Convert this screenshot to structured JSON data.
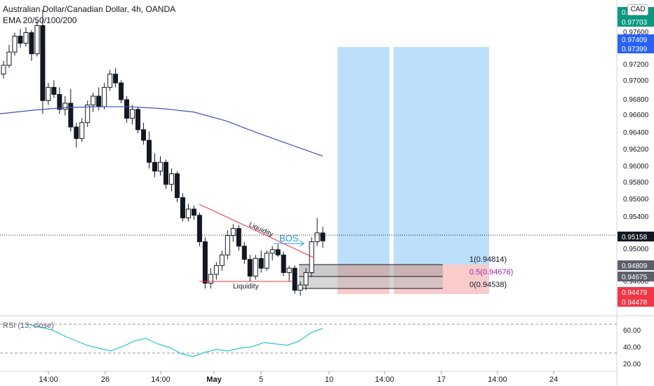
{
  "header": {
    "title": "Australian Dollar/Canadian Dollar, 4h, OANDA",
    "indicator": "EMA 20/50/100/200",
    "currency": "CAD"
  },
  "rsi": {
    "title": "RSI (13, close)",
    "ticks": [
      "60.00",
      "40.00",
      "20.00"
    ]
  },
  "annotations": {
    "bos": "BOS",
    "liquidity_upper": "Liquidity",
    "liquidity_lower": "Liquidity",
    "fib_1": "1(0.94814)",
    "fib_05": "0.5(0.94676)",
    "fib_0": "0(0.94538)"
  },
  "price_axis": {
    "ticks": [
      "0.97600",
      "0.97200",
      "0.97000",
      "0.96800",
      "0.96600",
      "0.96400",
      "0.96200",
      "0.96000",
      "0.95800",
      "0.95600",
      "0.95400",
      "0.95000",
      "0.94600"
    ],
    "badges": [
      {
        "text": "0.97727",
        "color": "#089981"
      },
      {
        "text": "0.97703",
        "color": "#089981"
      },
      {
        "text": "0.97409",
        "color": "#2962ff"
      },
      {
        "text": "0.97399",
        "color": "#2962ff"
      },
      {
        "text": "0.95158",
        "color": "#131722"
      },
      {
        "text": "0.94809",
        "color": "#5d606b"
      },
      {
        "text": "0.94675",
        "color": "#5d606b"
      },
      {
        "text": "0.94479",
        "color": "#f23645"
      },
      {
        "text": "0.94478",
        "color": "#f23645"
      }
    ]
  },
  "time_axis": {
    "labels": [
      "14:00",
      "26",
      "14:00",
      "May",
      "5",
      "10",
      "14:00",
      "17",
      "14:00",
      "24"
    ]
  },
  "chart_data": {
    "type": "candlestick",
    "title": "Australian Dollar/Canadian Dollar, 4h, OANDA",
    "ylim": [
      0.9435,
      0.9785
    ],
    "last_price": 0.95158,
    "ohlc": [
      [
        0.9705,
        0.972,
        0.97,
        0.9715
      ],
      [
        0.9715,
        0.9738,
        0.9712,
        0.973
      ],
      [
        0.973,
        0.9752,
        0.9726,
        0.9748
      ],
      [
        0.9748,
        0.9756,
        0.9735,
        0.974
      ],
      [
        0.974,
        0.9758,
        0.9736,
        0.9752
      ],
      [
        0.9752,
        0.9755,
        0.972,
        0.9728
      ],
      [
        0.9728,
        0.9765,
        0.9725,
        0.976
      ],
      [
        0.976,
        0.9778,
        0.966,
        0.9675
      ],
      [
        0.9675,
        0.9695,
        0.967,
        0.969
      ],
      [
        0.969,
        0.9698,
        0.9678,
        0.9682
      ],
      [
        0.9682,
        0.969,
        0.966,
        0.9665
      ],
      [
        0.9665,
        0.968,
        0.9658,
        0.9672
      ],
      [
        0.9672,
        0.9688,
        0.964,
        0.9645
      ],
      [
        0.9645,
        0.965,
        0.9622,
        0.9632
      ],
      [
        0.9632,
        0.9655,
        0.9628,
        0.965
      ],
      [
        0.965,
        0.9675,
        0.9645,
        0.967
      ],
      [
        0.967,
        0.9684,
        0.9662,
        0.968
      ],
      [
        0.968,
        0.969,
        0.9664,
        0.9668
      ],
      [
        0.9668,
        0.9695,
        0.9665,
        0.969
      ],
      [
        0.969,
        0.971,
        0.9686,
        0.9705
      ],
      [
        0.9705,
        0.9712,
        0.969,
        0.9695
      ],
      [
        0.9695,
        0.9698,
        0.9672,
        0.9676
      ],
      [
        0.9676,
        0.968,
        0.965,
        0.9655
      ],
      [
        0.9655,
        0.967,
        0.9648,
        0.9665
      ],
      [
        0.9665,
        0.9668,
        0.9638,
        0.9642
      ],
      [
        0.9642,
        0.965,
        0.9625,
        0.963
      ],
      [
        0.963,
        0.964,
        0.9598,
        0.9605
      ],
      [
        0.9605,
        0.9615,
        0.9588,
        0.9595
      ],
      [
        0.9595,
        0.9612,
        0.959,
        0.9605
      ],
      [
        0.9605,
        0.9608,
        0.9575,
        0.958
      ],
      [
        0.958,
        0.9598,
        0.9572,
        0.9592
      ],
      [
        0.9592,
        0.9595,
        0.956,
        0.9565
      ],
      [
        0.9565,
        0.957,
        0.9538,
        0.9542
      ],
      [
        0.9542,
        0.9558,
        0.9538,
        0.9552
      ],
      [
        0.9552,
        0.9556,
        0.954,
        0.9545
      ],
      [
        0.9545,
        0.9548,
        0.951,
        0.9515
      ],
      [
        0.9515,
        0.952,
        0.9462,
        0.9468
      ],
      [
        0.9468,
        0.9485,
        0.9462,
        0.9478
      ],
      [
        0.9478,
        0.9492,
        0.9472,
        0.9488
      ],
      [
        0.9488,
        0.9505,
        0.9482,
        0.95
      ],
      [
        0.95,
        0.9528,
        0.9495,
        0.9522
      ],
      [
        0.9522,
        0.9535,
        0.9515,
        0.953
      ],
      [
        0.953,
        0.9534,
        0.9505,
        0.951
      ],
      [
        0.951,
        0.9515,
        0.949,
        0.9495
      ],
      [
        0.9495,
        0.95,
        0.947,
        0.9476
      ],
      [
        0.9476,
        0.95,
        0.9472,
        0.9496
      ],
      [
        0.9496,
        0.9505,
        0.948,
        0.9485
      ],
      [
        0.9485,
        0.9505,
        0.9482,
        0.9502
      ],
      [
        0.9502,
        0.951,
        0.9494,
        0.9506
      ],
      [
        0.9506,
        0.9512,
        0.9498,
        0.95
      ],
      [
        0.95,
        0.9504,
        0.9476,
        0.948
      ],
      [
        0.948,
        0.9488,
        0.947,
        0.9485
      ],
      [
        0.9485,
        0.9488,
        0.9456,
        0.946
      ],
      [
        0.946,
        0.947,
        0.9454,
        0.9466
      ],
      [
        0.9466,
        0.9485,
        0.946,
        0.948
      ],
      [
        0.948,
        0.952,
        0.9476,
        0.9515
      ],
      [
        0.9515,
        0.9542,
        0.951,
        0.9525
      ],
      [
        0.9525,
        0.9532,
        0.9508,
        0.9516
      ]
    ],
    "ema200": [
      0.966,
      0.9664,
      0.9667,
      0.9668,
      0.9668,
      0.9666,
      0.9662,
      0.9652,
      0.9638,
      0.9625,
      0.9612
    ],
    "rsi": [
      68,
      64,
      60,
      52,
      45,
      38,
      34,
      30,
      36,
      44,
      48,
      40,
      35,
      26,
      22,
      28,
      32,
      30,
      34,
      36,
      42,
      40,
      38,
      44,
      56,
      62
    ]
  }
}
